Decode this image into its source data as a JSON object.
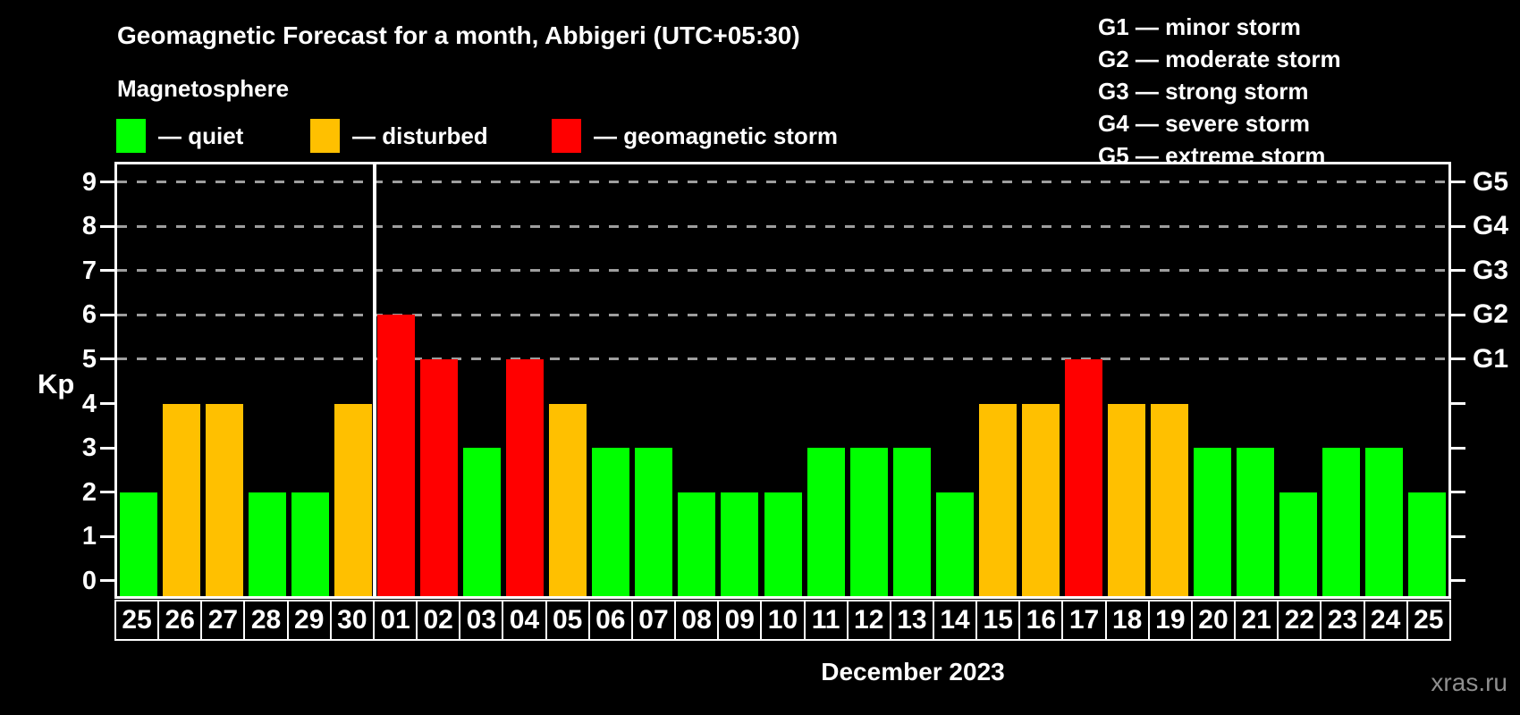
{
  "header": {
    "title": "Geomagnetic Forecast for a month, Abbigeri (UTC+05:30)",
    "subtitle": "Magnetosphere"
  },
  "legend": {
    "items": [
      {
        "key": "quiet",
        "label": "— quiet",
        "color": "#00ff00"
      },
      {
        "key": "disturbed",
        "label": "— disturbed",
        "color": "#ffc000"
      },
      {
        "key": "storm",
        "label": "— geomagnetic storm",
        "color": "#ff0000"
      }
    ]
  },
  "g_scale": {
    "separator": "—",
    "items": [
      {
        "code": "G1",
        "label": "minor storm"
      },
      {
        "code": "G2",
        "label": "moderate storm"
      },
      {
        "code": "G3",
        "label": "strong storm"
      },
      {
        "code": "G4",
        "label": "severe storm"
      },
      {
        "code": "G5",
        "label": "extreme storm"
      }
    ]
  },
  "chart_data": {
    "type": "bar",
    "title": "Geomagnetic Forecast for a month, Abbigeri (UTC+05:30)",
    "subtitle": "Magnetosphere",
    "xlabel": "December 2023",
    "ylabel": "Kp",
    "categories": [
      "25",
      "26",
      "27",
      "28",
      "29",
      "30",
      "01",
      "02",
      "03",
      "04",
      "05",
      "06",
      "07",
      "08",
      "09",
      "10",
      "11",
      "12",
      "13",
      "14",
      "15",
      "16",
      "17",
      "18",
      "19",
      "20",
      "21",
      "22",
      "23",
      "24",
      "25"
    ],
    "values": [
      2,
      4,
      4,
      2,
      2,
      4,
      6,
      5,
      3,
      5,
      4,
      3,
      3,
      2,
      2,
      2,
      3,
      3,
      3,
      2,
      4,
      4,
      5,
      4,
      4,
      3,
      3,
      2,
      3,
      3,
      2
    ],
    "statuses": [
      "quiet",
      "disturbed",
      "disturbed",
      "quiet",
      "quiet",
      "disturbed",
      "storm",
      "storm",
      "quiet",
      "storm",
      "disturbed",
      "quiet",
      "quiet",
      "quiet",
      "quiet",
      "quiet",
      "quiet",
      "quiet",
      "quiet",
      "quiet",
      "disturbed",
      "disturbed",
      "storm",
      "disturbed",
      "disturbed",
      "quiet",
      "quiet",
      "quiet",
      "quiet",
      "quiet",
      "quiet"
    ],
    "colors": {
      "quiet": "#00ff00",
      "disturbed": "#ffc000",
      "storm": "#ff0000"
    },
    "ylim": [
      -0.35,
      9.4
    ],
    "yticks": [
      0,
      1,
      2,
      3,
      4,
      5,
      6,
      7,
      8,
      9
    ],
    "g_levels": [
      {
        "code": "G1",
        "kp": 5
      },
      {
        "code": "G2",
        "kp": 6
      },
      {
        "code": "G3",
        "kp": 7
      },
      {
        "code": "G4",
        "kp": 8
      },
      {
        "code": "G5",
        "kp": 9
      }
    ],
    "month_separator_after_index": 5,
    "grid": "dashed horizontal lines at Kp 5-9 (G1-G5)",
    "legend_position": "top-left"
  },
  "footer": {
    "watermark": "xras.ru"
  }
}
